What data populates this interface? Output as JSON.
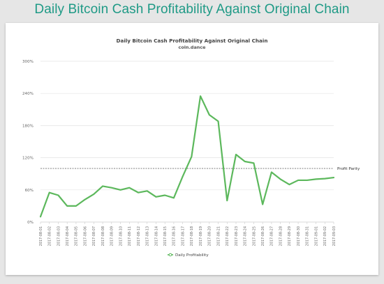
{
  "page": {
    "title": "Daily Bitcoin Cash Profitability Against Original Chain"
  },
  "chart_data": {
    "type": "line",
    "title": "Daily Bitcoin Cash Profitability Against Original Chain",
    "subtitle": "coin.dance",
    "x": [
      "2017-08-01",
      "2017-08-02",
      "2017-08-03",
      "2017-08-04",
      "2017-08-05",
      "2017-08-06",
      "2017-08-07",
      "2017-08-08",
      "2017-08-09",
      "2017-08-10",
      "2017-08-11",
      "2017-08-12",
      "2017-08-13",
      "2017-08-14",
      "2017-08-15",
      "2017-08-16",
      "2017-08-17",
      "2017-08-18",
      "2017-08-19",
      "2017-08-20",
      "2017-08-21",
      "2017-08-22",
      "2017-08-23",
      "2017-08-24",
      "2017-08-25",
      "2017-08-26",
      "2017-08-27",
      "2017-08-28",
      "2017-08-29",
      "2017-08-30",
      "2017-08-31",
      "2017-09-01",
      "2017-09-02",
      "2017-09-03"
    ],
    "series": [
      {
        "name": "Daily Profitability",
        "color": "#5cb85c",
        "values": [
          10,
          55,
          50,
          30,
          30,
          42,
          52,
          67,
          64,
          60,
          64,
          55,
          58,
          47,
          50,
          45,
          85,
          122,
          235,
          200,
          188,
          40,
          126,
          113,
          110,
          33,
          93,
          80,
          70,
          78,
          78,
          80,
          81,
          83
        ]
      }
    ],
    "yticks": [
      "0%",
      "60%",
      "120%",
      "180%",
      "240%",
      "300%"
    ],
    "ylim": [
      0,
      300
    ],
    "reference_line": {
      "value": 100,
      "label": "Profit Parity"
    },
    "grid": "horizontal",
    "legend_position": "bottom"
  }
}
